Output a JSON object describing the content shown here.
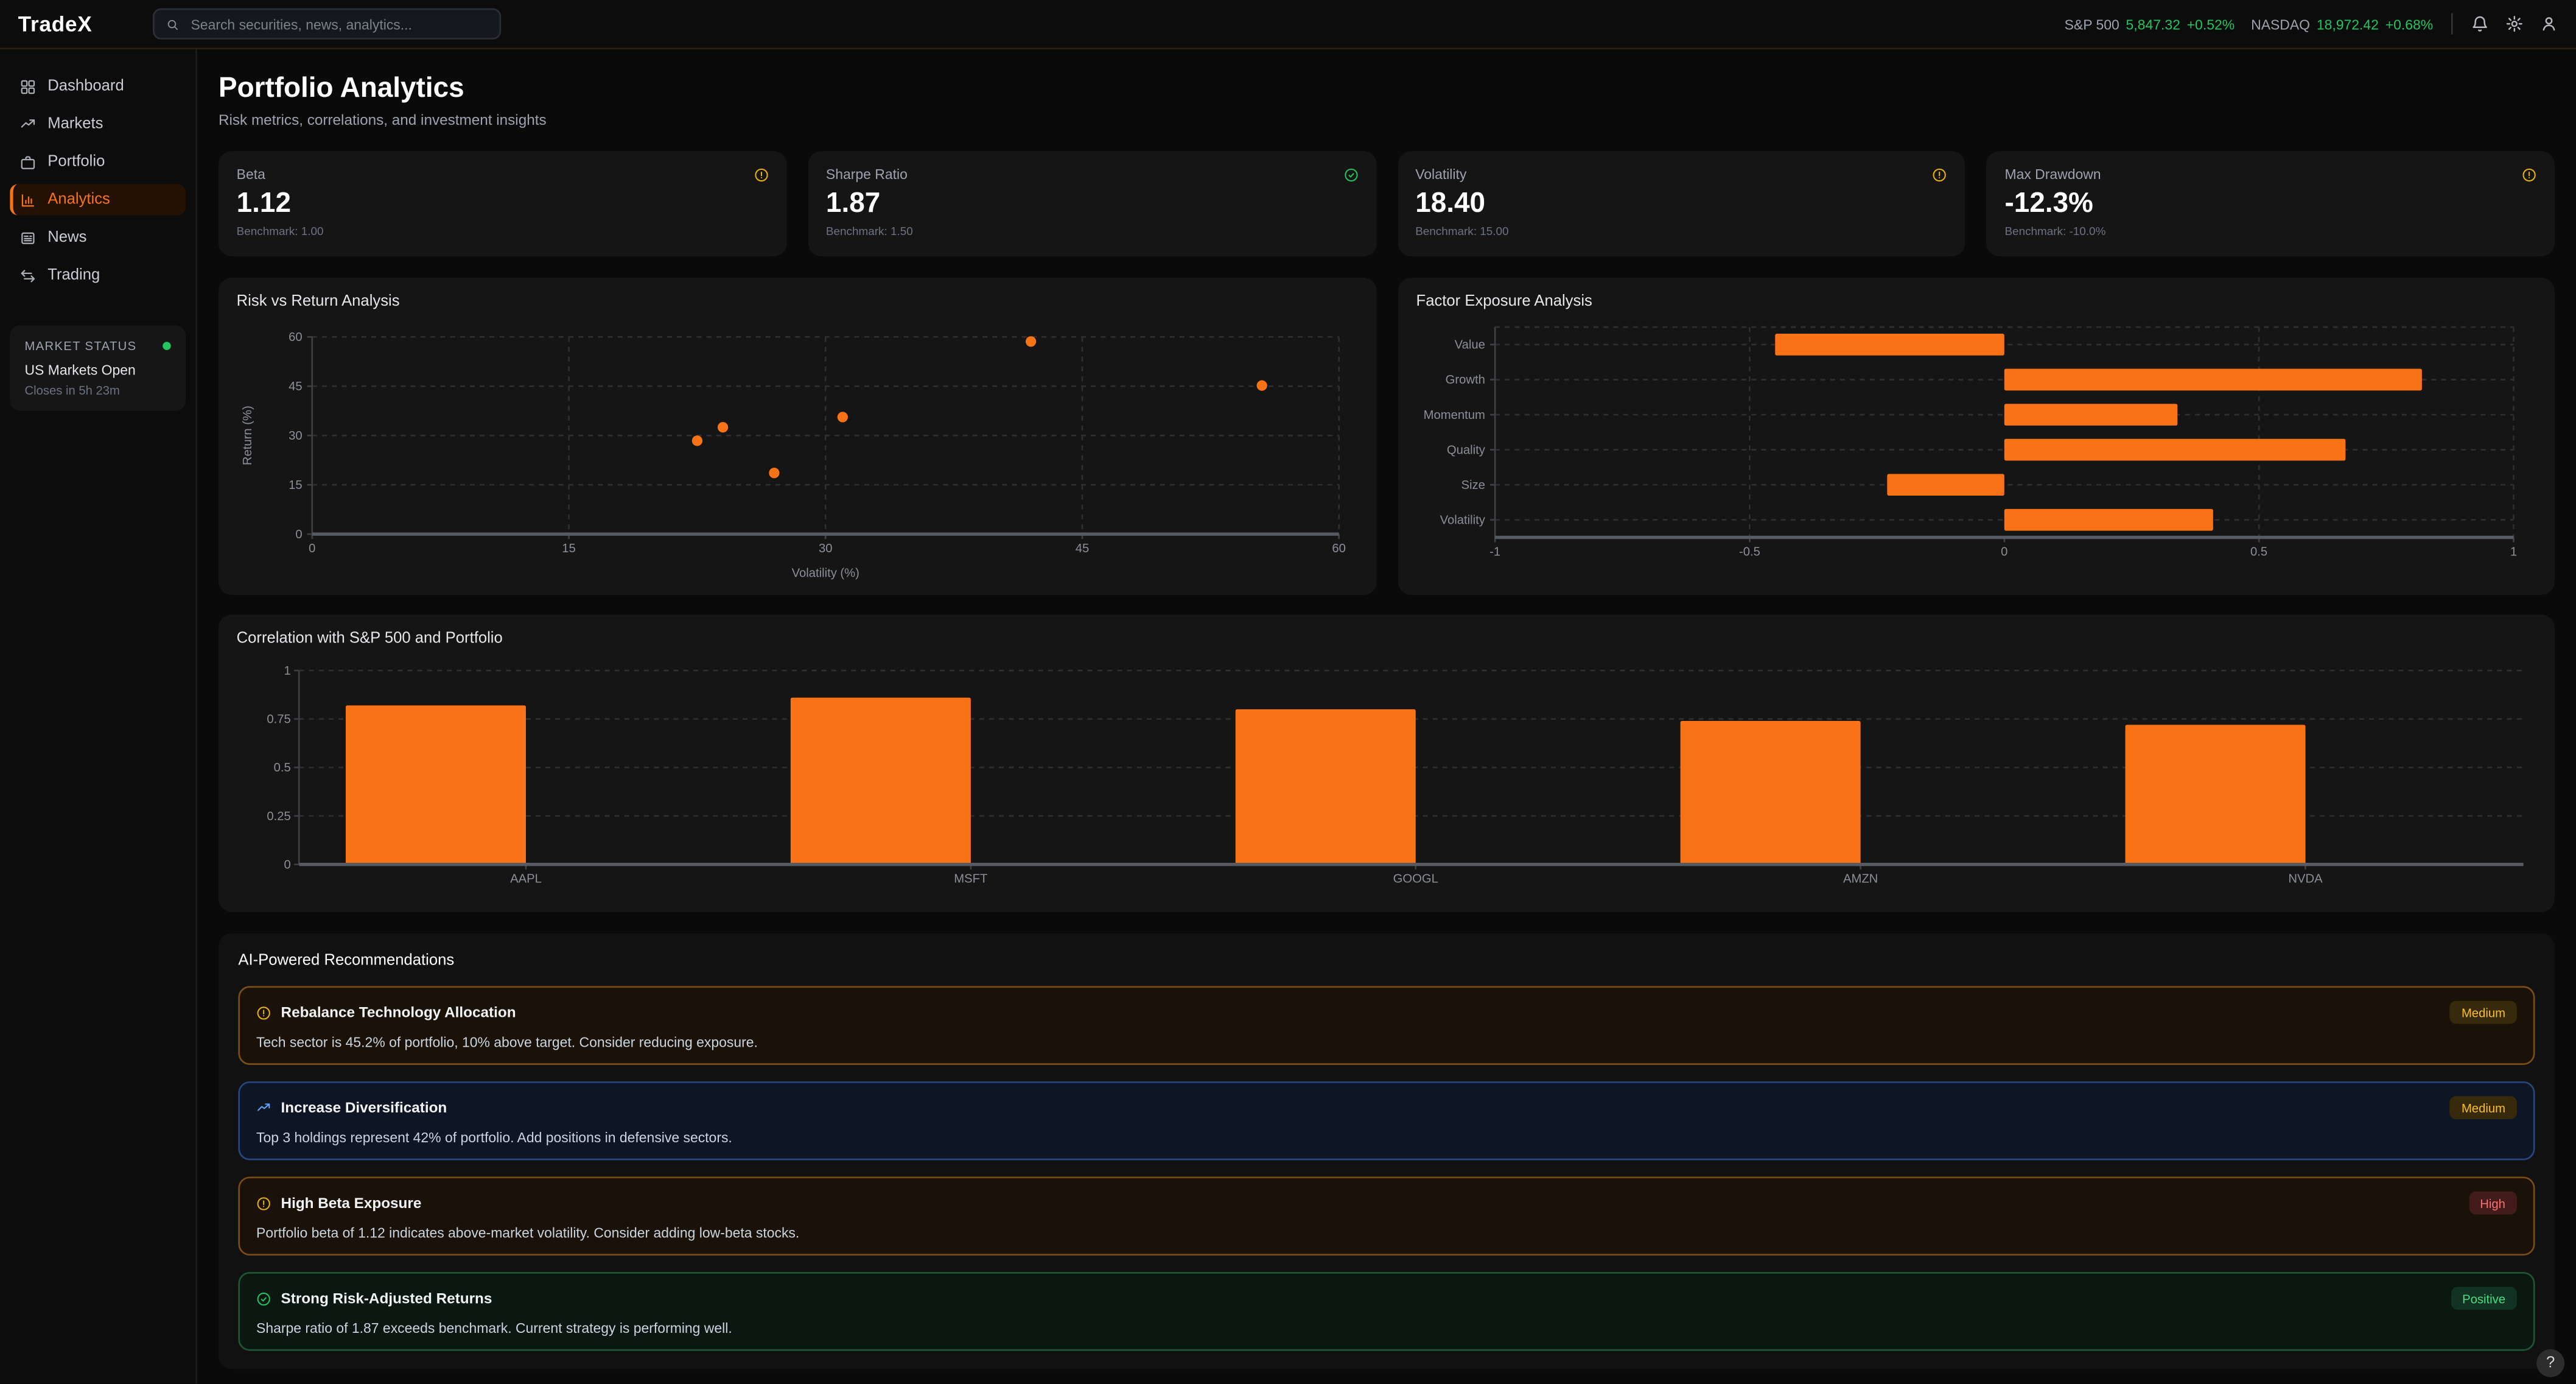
{
  "app": {
    "logo": "TradeX"
  },
  "topbar": {
    "search_placeholder": "Search securities, news, analytics...",
    "tickers": [
      {
        "label": "S&P 500",
        "value": "5,847.32",
        "change": "+0.52%"
      },
      {
        "label": "NASDAQ",
        "value": "18,972.42",
        "change": "+0.68%"
      }
    ],
    "icons": [
      "search-icon",
      "bell-icon",
      "gear-icon",
      "user-icon"
    ]
  },
  "sidebar": {
    "items": [
      {
        "label": "Dashboard",
        "icon": "dashboard-grid-icon",
        "active": false
      },
      {
        "label": "Markets",
        "icon": "trending-up-icon",
        "active": false
      },
      {
        "label": "Portfolio",
        "icon": "briefcase-icon",
        "active": false
      },
      {
        "label": "Analytics",
        "icon": "bar-chart-icon",
        "active": true
      },
      {
        "label": "News",
        "icon": "newspaper-icon",
        "active": false
      },
      {
        "label": "Trading",
        "icon": "arrows-swap-icon",
        "active": false
      }
    ],
    "market_status": {
      "title": "MARKET STATUS",
      "status": "US Markets Open",
      "detail": "Closes in 5h 23m",
      "dot_color": "#22c55e"
    }
  },
  "page": {
    "title": "Portfolio Analytics",
    "subtitle": "Risk metrics, correlations, and investment insights"
  },
  "metrics": [
    {
      "label": "Beta",
      "value": "1.12",
      "benchmark": "Benchmark: 1.00",
      "status": "warning",
      "icon": "alert-circle-icon"
    },
    {
      "label": "Sharpe Ratio",
      "value": "1.87",
      "benchmark": "Benchmark: 1.50",
      "status": "good",
      "icon": "check-circle-icon"
    },
    {
      "label": "Volatility",
      "value": "18.40",
      "benchmark": "Benchmark: 15.00",
      "status": "warning",
      "icon": "alert-circle-icon"
    },
    {
      "label": "Max Drawdown",
      "value": "-12.3%",
      "benchmark": "Benchmark: -10.0%",
      "status": "warning",
      "icon": "alert-circle-icon"
    }
  ],
  "chart_data": [
    {
      "type": "scatter",
      "title": "Risk vs Return Analysis",
      "xlabel": "Volatility (%)",
      "ylabel": "Return (%)",
      "xlim": [
        0,
        60
      ],
      "ylim": [
        0,
        60
      ],
      "xticks": [
        0,
        15,
        30,
        45,
        60
      ],
      "yticks": [
        0,
        15,
        30,
        45,
        60
      ],
      "grid": "dashed",
      "point_color": "#f97316",
      "points": [
        {
          "x": 22.5,
          "y": 28.4
        },
        {
          "x": 24,
          "y": 32.5
        },
        {
          "x": 27,
          "y": 18.6
        },
        {
          "x": 31,
          "y": 35.6
        },
        {
          "x": 42,
          "y": 58.6
        },
        {
          "x": 55.5,
          "y": 45.2
        }
      ]
    },
    {
      "type": "bar-horizontal",
      "title": "Factor Exposure Analysis",
      "categories": [
        "Value",
        "Growth",
        "Momentum",
        "Quality",
        "Size",
        "Volatility"
      ],
      "values": [
        -0.45,
        0.82,
        0.34,
        0.67,
        -0.23,
        0.41
      ],
      "xlim": [
        -1,
        1
      ],
      "xticks": [
        -1,
        -0.5,
        0,
        0.5,
        1
      ],
      "grid": "dashed",
      "bar_color": "#f97316"
    },
    {
      "type": "bar",
      "title": "Correlation with S&P 500 and Portfolio",
      "categories": [
        "AAPL",
        "MSFT",
        "GOOGL",
        "AMZN",
        "NVDA"
      ],
      "values": [
        0.82,
        0.86,
        0.8,
        0.74,
        0.72
      ],
      "ylim": [
        0,
        1
      ],
      "yticks": [
        0,
        0.25,
        0.5,
        0.75,
        1
      ],
      "grid": "dashed",
      "bar_color": "#f97316"
    }
  ],
  "recommendations": {
    "title": "AI-Powered Recommendations",
    "items": [
      {
        "title": "Rebalance Technology Allocation",
        "description": "Tech sector is 45.2% of portfolio, 10% above target. Consider reducing exposure.",
        "badge": "Medium",
        "severity": "warning",
        "icon": "alert-circle-icon"
      },
      {
        "title": "Increase Diversification",
        "description": "Top 3 holdings represent 42% of portfolio. Add positions in defensive sectors.",
        "badge": "Medium",
        "severity": "info",
        "icon": "trending-up-icon"
      },
      {
        "title": "High Beta Exposure",
        "description": "Portfolio beta of 1.12 indicates above-market volatility. Consider adding low-beta stocks.",
        "badge": "High",
        "severity": "high",
        "icon": "alert-circle-icon"
      },
      {
        "title": "Strong Risk-Adjusted Returns",
        "description": "Sharpe ratio of 1.87 exceeds benchmark. Current strategy is performing well.",
        "badge": "Positive",
        "severity": "positive",
        "icon": "check-circle-icon"
      }
    ]
  },
  "help": {
    "label": "?"
  },
  "colors": {
    "accent": "#f97316",
    "positive": "#22c55e",
    "warning": "#eab308",
    "negative": "#ef4444",
    "info": "#60a5fa"
  }
}
